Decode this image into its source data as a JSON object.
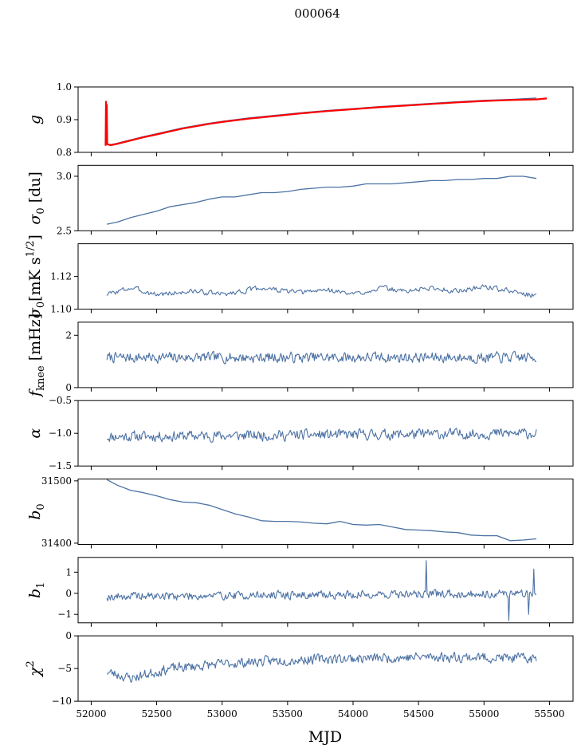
{
  "figure": {
    "suptitle": "000064",
    "xlabel": "MJD"
  },
  "colors": {
    "series": "#4c72a4",
    "fit": "#ff0000",
    "axes": "#000000"
  },
  "chart_data": [
    {
      "type": "line",
      "ylabel_base": "g",
      "ylim": [
        0.8,
        1.0
      ],
      "yticks": [
        0.8,
        0.9,
        1.0
      ],
      "ytick_labels": [
        "0.8",
        "0.9",
        "1.0"
      ],
      "xlim": [
        51900,
        55680
      ],
      "xticks": [
        52000,
        52500,
        53000,
        53500,
        54000,
        54500,
        55000,
        55500
      ],
      "xtick_labels": [],
      "series": [
        {
          "x": [
            52120,
            52150,
            52200,
            52300,
            52400,
            52500,
            52600,
            52700,
            52800,
            52900,
            53000,
            53200,
            53400,
            53600,
            53800,
            54000,
            54200,
            54400,
            54600,
            54800,
            55000,
            55200,
            55400
          ],
          "y": [
            0.825,
            0.824,
            0.828,
            0.838,
            0.848,
            0.857,
            0.866,
            0.875,
            0.882,
            0.889,
            0.895,
            0.905,
            0.913,
            0.921,
            0.928,
            0.934,
            0.94,
            0.945,
            0.95,
            0.955,
            0.959,
            0.962,
            0.966
          ]
        },
        {
          "x": [
            52110,
            52113,
            52116,
            52119,
            52122,
            52150,
            52200,
            52300,
            52400,
            52500,
            52600,
            52700,
            52800,
            52900,
            53000,
            53200,
            53400,
            53600,
            53800,
            54000,
            54200,
            54400,
            54600,
            54800,
            55000,
            55200,
            55400,
            55480
          ],
          "y": [
            0.82,
            0.955,
            0.83,
            0.945,
            0.825,
            0.822,
            0.826,
            0.836,
            0.846,
            0.855,
            0.864,
            0.873,
            0.88,
            0.887,
            0.893,
            0.903,
            0.911,
            0.919,
            0.926,
            0.932,
            0.938,
            0.943,
            0.948,
            0.953,
            0.957,
            0.96,
            0.962,
            0.965
          ]
        }
      ]
    },
    {
      "type": "line",
      "ylabel_base": "σ",
      "ylabel_sub": "0",
      "ylabel_unit": " [du]",
      "ylim": [
        2.5,
        3.1
      ],
      "yticks": [
        2.5,
        3.0
      ],
      "ytick_labels": [
        "2.5",
        "3.0"
      ],
      "xlim": [
        51900,
        55680
      ],
      "xticks": [
        52000,
        52500,
        53000,
        53500,
        54000,
        54500,
        55000,
        55500
      ],
      "xtick_labels": [],
      "series": [
        {
          "x": [
            52120,
            52200,
            52300,
            52400,
            52500,
            52600,
            52700,
            52800,
            52900,
            53000,
            53100,
            53200,
            53300,
            53400,
            53500,
            53600,
            53700,
            53800,
            53900,
            54000,
            54100,
            54200,
            54300,
            54400,
            54500,
            54600,
            54700,
            54800,
            54900,
            55000,
            55100,
            55200,
            55300,
            55400
          ],
          "y": [
            2.56,
            2.58,
            2.62,
            2.65,
            2.68,
            2.72,
            2.74,
            2.76,
            2.79,
            2.81,
            2.81,
            2.83,
            2.85,
            2.85,
            2.86,
            2.88,
            2.89,
            2.9,
            2.9,
            2.91,
            2.93,
            2.93,
            2.93,
            2.94,
            2.95,
            2.96,
            2.96,
            2.97,
            2.97,
            2.98,
            2.98,
            3.0,
            3.0,
            2.98
          ]
        }
      ]
    },
    {
      "type": "line",
      "ylabel_base": "σ",
      "ylabel_sub": "0",
      "ylabel_unit": "[mK s",
      "ylabel_sup": "1/2",
      "ylabel_tail": "]",
      "ylim": [
        1.1,
        1.14
      ],
      "yticks": [
        1.1,
        1.12
      ],
      "ytick_labels": [
        "1.10",
        "1.12"
      ],
      "xlim": [
        51900,
        55680
      ],
      "xticks": [
        52000,
        52500,
        53000,
        53500,
        54000,
        54500,
        55000,
        55500
      ],
      "xtick_labels": [],
      "noise": {
        "x_start": 52120,
        "x_end": 55400,
        "n": 400,
        "base": [
          [
            52120,
            1.109
          ],
          [
            52300,
            1.113
          ],
          [
            52500,
            1.109
          ],
          [
            52800,
            1.111
          ],
          [
            53000,
            1.109
          ],
          [
            53300,
            1.113
          ],
          [
            53600,
            1.11
          ],
          [
            53800,
            1.112
          ],
          [
            54000,
            1.109
          ],
          [
            54200,
            1.113
          ],
          [
            54400,
            1.111
          ],
          [
            54600,
            1.113
          ],
          [
            54800,
            1.111
          ],
          [
            55000,
            1.114
          ],
          [
            55200,
            1.111
          ],
          [
            55400,
            1.108
          ]
        ],
        "amp": 0.0018,
        "seed": 3
      }
    },
    {
      "type": "line",
      "ylabel_base": "f",
      "ylabel_sub": "knee",
      "ylabel_unit": " [mHz]",
      "ylim": [
        0,
        2.5
      ],
      "yticks": [
        0,
        2
      ],
      "ytick_labels": [
        "0",
        "2"
      ],
      "xlim": [
        51900,
        55680
      ],
      "xticks": [
        52000,
        52500,
        53000,
        53500,
        54000,
        54500,
        55000,
        55500
      ],
      "xtick_labels": [],
      "noise": {
        "x_start": 52120,
        "x_end": 55400,
        "n": 500,
        "base": [
          [
            52120,
            1.15
          ],
          [
            55400,
            1.15
          ]
        ],
        "amp": 0.22,
        "seed": 7
      }
    },
    {
      "type": "line",
      "ylabel_base": "α",
      "ylim": [
        -1.5,
        -0.5
      ],
      "yticks": [
        -1.5,
        -1.0,
        -0.5
      ],
      "ytick_labels": [
        "−1.5",
        "−1.0",
        "−0.5"
      ],
      "xlim": [
        51900,
        55680
      ],
      "xticks": [
        52000,
        52500,
        53000,
        53500,
        54000,
        54500,
        55000,
        55500
      ],
      "xtick_labels": [],
      "noise": {
        "x_start": 52120,
        "x_end": 55400,
        "n": 500,
        "base": [
          [
            52120,
            -1.05
          ],
          [
            55400,
            -1.0
          ]
        ],
        "amp": 0.09,
        "seed": 11
      }
    },
    {
      "type": "line",
      "ylabel_base": "b",
      "ylabel_sub": "0",
      "ylim": [
        31398,
        31503
      ],
      "yticks": [
        31400,
        31500
      ],
      "ytick_labels": [
        "31400",
        "31500"
      ],
      "xlim": [
        51900,
        55680
      ],
      "xticks": [
        52000,
        52500,
        53000,
        53500,
        54000,
        54500,
        55000,
        55500
      ],
      "xtick_labels": [],
      "series": [
        {
          "x": [
            52120,
            52200,
            52300,
            52400,
            52500,
            52600,
            52700,
            52800,
            52900,
            53000,
            53100,
            53200,
            53300,
            53400,
            53500,
            53600,
            53700,
            53800,
            53850,
            53900,
            54000,
            54100,
            54200,
            54300,
            54400,
            54500,
            54600,
            54700,
            54800,
            54900,
            55000,
            55100,
            55200,
            55300,
            55400
          ],
          "y": [
            31502,
            31493,
            31485,
            31481,
            31476,
            31470,
            31466,
            31465,
            31461,
            31454,
            31447,
            31442,
            31436,
            31435,
            31435,
            31434,
            31432,
            31431,
            31433,
            31435,
            31430,
            31429,
            31430,
            31426,
            31422,
            31421,
            31420,
            31418,
            31417,
            31413,
            31412,
            31412,
            31404,
            31405,
            31407
          ]
        }
      ]
    },
    {
      "type": "line",
      "ylabel_base": "b",
      "ylabel_sub": "1",
      "ylim": [
        -1.4,
        1.7
      ],
      "yticks": [
        -1,
        0,
        1
      ],
      "ytick_labels": [
        "−1",
        "0",
        "1"
      ],
      "xlim": [
        51900,
        55680
      ],
      "xticks": [
        52000,
        52500,
        53000,
        53500,
        54000,
        54500,
        55000,
        55500
      ],
      "xtick_labels": [],
      "noise": {
        "x_start": 52120,
        "x_end": 55400,
        "n": 500,
        "base": [
          [
            52120,
            -0.15
          ],
          [
            55400,
            0.0
          ]
        ],
        "amp": 0.22,
        "seed": 19,
        "spikes": [
          [
            54560,
            1.55
          ],
          [
            55190,
            -1.3
          ],
          [
            55380,
            1.15
          ],
          [
            55340,
            -1.0
          ]
        ]
      }
    },
    {
      "type": "line",
      "ylabel_base": "χ",
      "ylabel_sup": "2",
      "ylim": [
        -10,
        0
      ],
      "yticks": [
        -10,
        -5,
        0
      ],
      "ytick_labels": [
        "−10",
        "−5",
        "0"
      ],
      "xlim": [
        51900,
        55680
      ],
      "xticks": [
        52000,
        52500,
        53000,
        53500,
        54000,
        54500,
        55000,
        55500
      ],
      "xtick_labels": [
        "52000",
        "52500",
        "53000",
        "53500",
        "54000",
        "54500",
        "55000",
        "55500"
      ],
      "noise": {
        "x_start": 52120,
        "x_end": 55400,
        "n": 500,
        "base": [
          [
            52120,
            -5.5
          ],
          [
            52300,
            -6.5
          ],
          [
            52600,
            -5.0
          ],
          [
            53000,
            -4.3
          ],
          [
            53400,
            -3.8
          ],
          [
            53800,
            -3.5
          ],
          [
            54200,
            -3.4
          ],
          [
            54600,
            -3.2
          ],
          [
            55000,
            -3.3
          ],
          [
            55400,
            -3.5
          ]
        ],
        "amp": 0.85,
        "seed": 23
      }
    }
  ]
}
